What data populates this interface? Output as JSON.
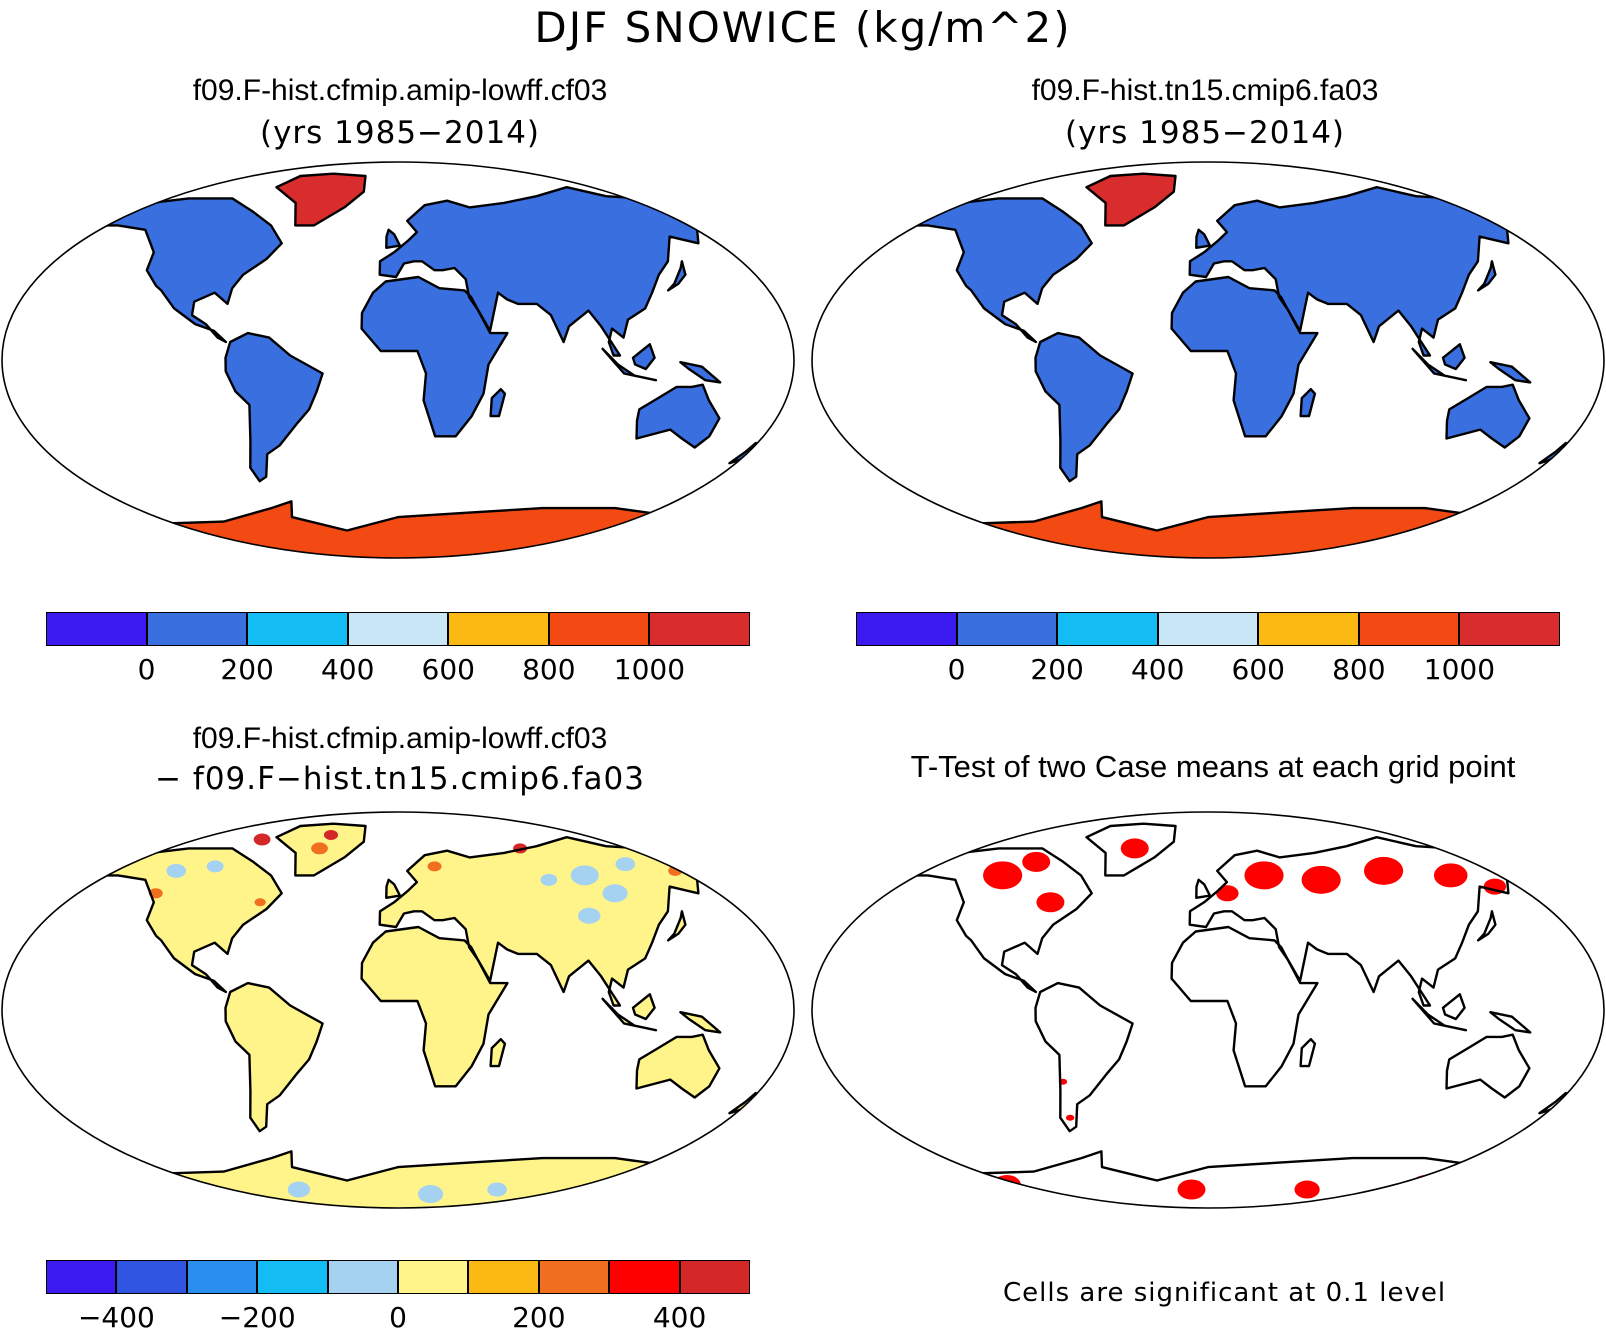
{
  "title": "DJF SNOWICE (kg/m^2)",
  "colors": {
    "ocean": "#ffffff",
    "coast": "#000000",
    "land_base": "#3a6fe0",
    "antarctica": "#f24a12",
    "greenland": "#d92c2c",
    "diff_base": "#fff48a",
    "diff_neg": "#a5d2f0",
    "diff_pos_orange": "#f07020",
    "diff_pos_red": "#d42828",
    "sig": "#ff0000"
  },
  "panels": [
    {
      "id": "case1",
      "title": "f09.F-hist.cfmip.amip-lowff.cf03",
      "subtitle": "(yrs 1985−2014)",
      "colorbar": {
        "colors": [
          "#3a1af0",
          "#3a6fe0",
          "#14bcf4",
          "#c8e6f5",
          "#fcb914",
          "#f24a12",
          "#d92c2c"
        ],
        "ticks": [
          "0",
          "200",
          "400",
          "600",
          "800",
          "1000"
        ]
      }
    },
    {
      "id": "case2",
      "title": "f09.F-hist.tn15.cmip6.fa03",
      "subtitle": "(yrs 1985−2014)",
      "colorbar": {
        "colors": [
          "#3a1af0",
          "#3a6fe0",
          "#14bcf4",
          "#c8e6f5",
          "#fcb914",
          "#f24a12",
          "#d92c2c"
        ],
        "ticks": [
          "0",
          "200",
          "400",
          "600",
          "800",
          "1000"
        ]
      }
    },
    {
      "id": "diff",
      "title": "f09.F-hist.cfmip.amip-lowff.cf03",
      "subtitle": "− f09.F−hist.tn15.cmip6.fa03",
      "colorbar": {
        "colors": [
          "#3a1af0",
          "#2f55e0",
          "#2a8ef0",
          "#14bcf4",
          "#a5d2f0",
          "#fff48a",
          "#fcb914",
          "#f07020",
          "#ff0000",
          "#d42828"
        ],
        "ticks": [
          "−400",
          "−200",
          "0",
          "200",
          "400"
        ]
      }
    },
    {
      "id": "ttest",
      "title": "T-Test of two Case means at each grid point",
      "note": "Cells are significant at 0.1 level"
    }
  ]
}
